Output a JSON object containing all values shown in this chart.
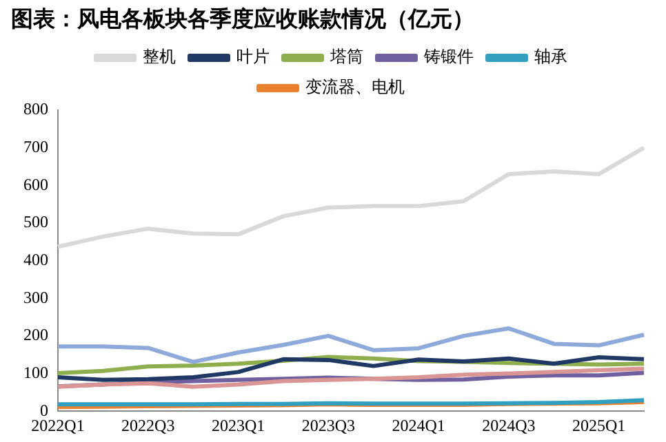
{
  "chart_data": {
    "type": "line",
    "title": "图表：风电各板块各季度应收账款情况（亿元）",
    "categories": [
      "2022Q1",
      null,
      "2022Q3",
      null,
      "2023Q1",
      null,
      "2023Q3",
      null,
      "2024Q1",
      null,
      "2024Q3",
      null,
      "2025Q1",
      null
    ],
    "series": [
      {
        "name": "整机",
        "color": "#d9d9d9",
        "values": [
          437,
          464,
          485,
          472,
          470,
          518,
          541,
          545,
          545,
          558,
          630,
          637,
          630,
          700
        ]
      },
      {
        "color": "#8eaadb",
        "values": [
          172,
          172,
          168,
          131,
          156,
          176,
          200,
          162,
          167,
          200,
          220,
          179,
          175,
          203
        ]
      },
      {
        "name": "叶片",
        "color": "#1f3864",
        "values": [
          90,
          83,
          85,
          90,
          104,
          138,
          136,
          120,
          137,
          132,
          140,
          126,
          143,
          138
        ]
      },
      {
        "name": "塔筒",
        "color": "#8faf4f",
        "values": [
          101,
          107,
          119,
          121,
          126,
          134,
          144,
          140,
          133,
          131,
          128,
          126,
          124,
          126
        ]
      },
      {
        "color": "#d99694",
        "values": [
          65,
          71,
          74,
          65,
          71,
          80,
          83,
          86,
          90,
          97,
          100,
          104,
          109,
          113
        ]
      },
      {
        "name": "铸锻件",
        "color": "#7060a0",
        "values": [
          66,
          71,
          77,
          80,
          83,
          86,
          89,
          86,
          83,
          84,
          92,
          95,
          95,
          102
        ]
      },
      {
        "name": "轴承",
        "color": "#31a0c0",
        "values": [
          18,
          18,
          18,
          18,
          19,
          19,
          21,
          20,
          20,
          20,
          21,
          22,
          24,
          29
        ]
      },
      {
        "name": "变流器、电机",
        "color": "#e8822f",
        "values": [
          11,
          12,
          13,
          14,
          15,
          16,
          18,
          17,
          17,
          17,
          19,
          20,
          21,
          24
        ]
      }
    ],
    "ylim": [
      0,
      800
    ],
    "yticks": [
      0,
      100,
      200,
      300,
      400,
      500,
      600,
      700,
      800
    ],
    "grid": false,
    "legend": "top",
    "marker": "none",
    "line_style": "solid"
  }
}
